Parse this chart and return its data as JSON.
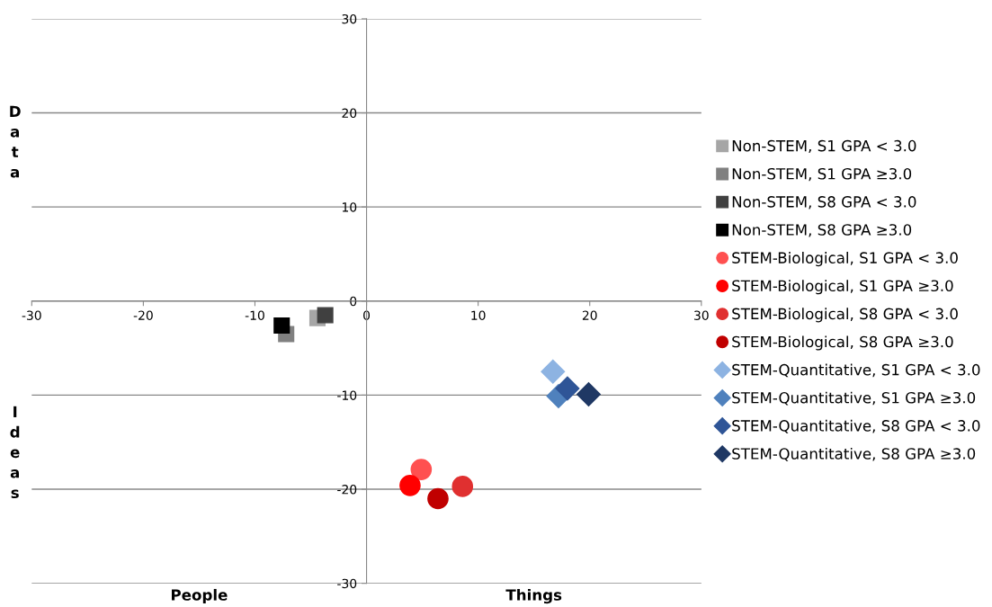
{
  "chart_data": {
    "type": "scatter",
    "annotations": [
      "People",
      "Things",
      "Data",
      "Ideas"
    ],
    "xlim": [
      -30,
      30
    ],
    "xticks": [
      -30,
      -20,
      -10,
      0,
      10,
      20,
      30
    ],
    "ylim": [
      -30,
      30
    ],
    "yticks": [
      -30,
      -20,
      -10,
      0,
      10,
      20,
      30
    ],
    "grid": "y",
    "legend": "right",
    "series": [
      {
        "name": "Non-STEM, S1 GPA < 3.0",
        "color": "#a6a6a6",
        "marker": "square",
        "x": [
          -4.4
        ],
        "values": [
          -1.8
        ]
      },
      {
        "name": "Non-STEM, S1 GPA ≥3.0",
        "color": "#808080",
        "marker": "square",
        "x": [
          -7.2
        ],
        "values": [
          -3.5
        ]
      },
      {
        "name": "Non-STEM, S8 GPA < 3.0",
        "color": "#404040",
        "marker": "square",
        "x": [
          -3.7
        ],
        "values": [
          -1.5
        ]
      },
      {
        "name": "Non-STEM, S8 GPA ≥3.0",
        "color": "#000000",
        "marker": "square",
        "x": [
          -7.6
        ],
        "values": [
          -2.6
        ]
      },
      {
        "name": "STEM-Biological, S1 GPA < 3.0",
        "color": "#ff5050",
        "marker": "circle",
        "x": [
          4.9
        ],
        "values": [
          -17.9
        ]
      },
      {
        "name": "STEM-Biological, S1 GPA ≥3.0",
        "color": "#ff0000",
        "marker": "circle",
        "x": [
          3.9
        ],
        "values": [
          -19.6
        ]
      },
      {
        "name": "STEM-Biological, S8 GPA < 3.0",
        "color": "#e03030",
        "marker": "circle",
        "x": [
          8.6
        ],
        "values": [
          -19.7
        ]
      },
      {
        "name": "STEM-Biological, S8 GPA ≥3.0",
        "color": "#c00000",
        "marker": "circle",
        "x": [
          6.4
        ],
        "values": [
          -21.0
        ]
      },
      {
        "name": "STEM-Quantitative, S1 GPA < 3.0",
        "color": "#8db3e2",
        "marker": "diamond",
        "x": [
          16.7
        ],
        "values": [
          -7.5
        ]
      },
      {
        "name": "STEM-Quantitative, S1 GPA ≥3.0",
        "color": "#4f81bd",
        "marker": "diamond",
        "x": [
          17.2
        ],
        "values": [
          -10.1
        ]
      },
      {
        "name": "STEM-Quantitative, S8 GPA < 3.0",
        "color": "#2f5597",
        "marker": "diamond",
        "x": [
          18.0
        ],
        "values": [
          -9.3
        ]
      },
      {
        "name": "STEM-Quantitative, S8 GPA ≥3.0",
        "color": "#1f3864",
        "marker": "diamond",
        "x": [
          19.9
        ],
        "values": [
          -9.9
        ]
      }
    ]
  }
}
